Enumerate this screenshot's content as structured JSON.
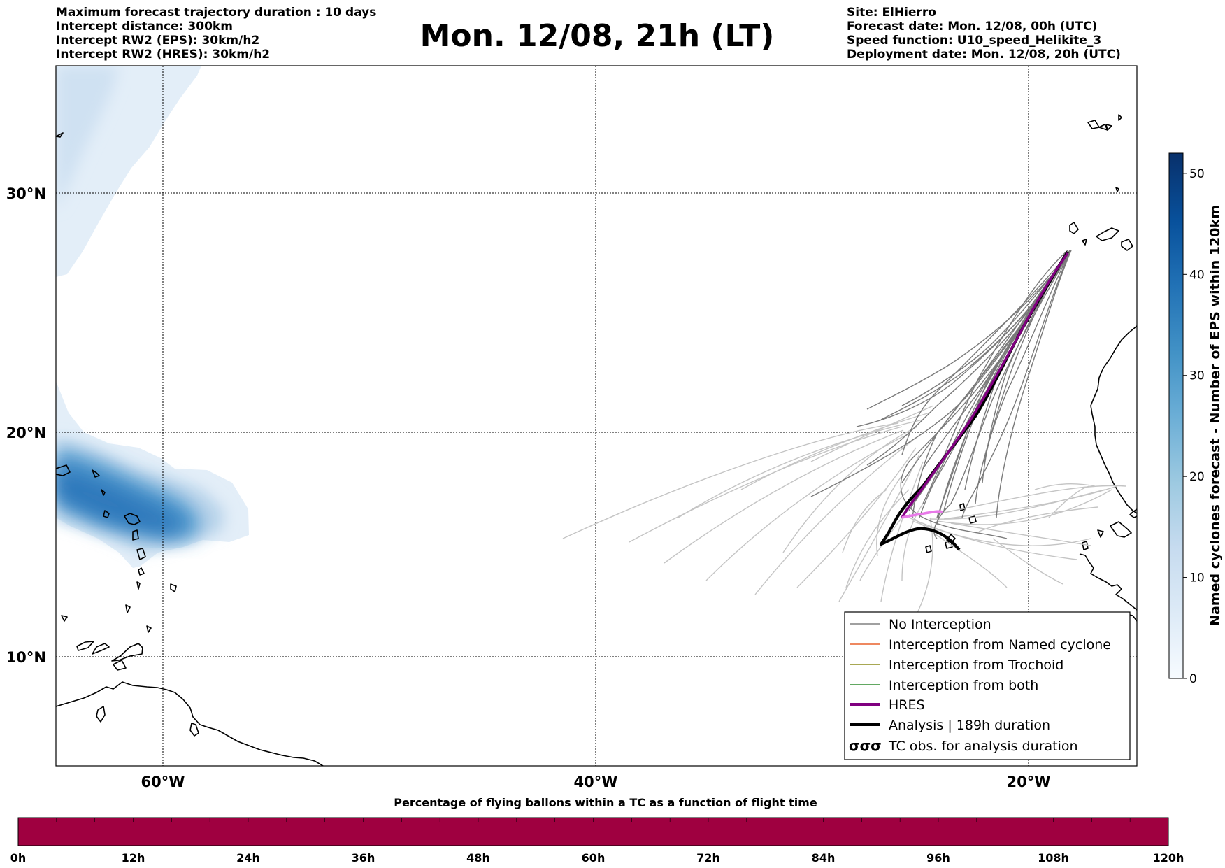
{
  "header": {
    "left_lines": [
      "Maximum forecast trajectory duration : 10 days",
      "Intercept distance: 300km",
      "Intercept RW2 (EPS):  30km/h2",
      "Intercept RW2 (HRES): 30km/h2"
    ],
    "title": "Mon. 12/08, 21h (LT)",
    "right_lines": [
      "Site: ElHierro",
      "Forecast date: Mon. 12/08, 00h (UTC)",
      "Speed function: U10_speed_Helikite_3",
      "Deployment date: Mon. 12/08, 20h (UTC)"
    ]
  },
  "map": {
    "lat_labels": [
      "30°N",
      "20°N",
      "10°N"
    ],
    "lon_labels": [
      "60°W",
      "40°W",
      "20°W"
    ],
    "extent": {
      "lon_min": -65,
      "lon_max": -15,
      "lat_min": 5.3,
      "lat_max": 35.3
    }
  },
  "colorbar": {
    "title": "Named cyclones forecast - Number of EPS within 120km",
    "ticks": [
      "0",
      "10",
      "20",
      "30",
      "40",
      "50"
    ],
    "range": [
      0,
      52
    ],
    "colors": [
      "#f7fbff",
      "#deebf7",
      "#c6dbef",
      "#9ecae1",
      "#6baed6",
      "#4292c6",
      "#2171b5",
      "#08519c",
      "#08306b"
    ]
  },
  "legend": {
    "items": [
      {
        "label": "No Interception",
        "color": "#808080",
        "style": "thin"
      },
      {
        "label": "Interception from Named cyclone",
        "color": "#e8602c",
        "style": "thin"
      },
      {
        "label": "Interception from Trochoid",
        "color": "#8b8b1a",
        "style": "thin"
      },
      {
        "label": "Interception from both",
        "color": "#2e8b2e",
        "style": "thin"
      },
      {
        "label": "HRES",
        "color": "#800080",
        "style": "thick"
      },
      {
        "label": "Analysis | 189h duration",
        "color": "#000000",
        "style": "thick"
      },
      {
        "label": "TC obs. for analysis duration",
        "color": "#000000",
        "style": "symbol",
        "symbol": "σσσ"
      }
    ]
  },
  "bottom_bar": {
    "title": "Percentage of flying ballons within a TC as a function of flight time",
    "ticks": [
      "0h",
      "12h",
      "24h",
      "36h",
      "48h",
      "60h",
      "72h",
      "84h",
      "96h",
      "108h",
      "120h"
    ],
    "fill_color": "#9f0040"
  },
  "chart_data": {
    "type": "map",
    "site": "ElHierro",
    "analysis_track": [
      [
        -17.7,
        27.7
      ],
      [
        -18.5,
        26.5
      ],
      [
        -19.8,
        24.5
      ],
      [
        -21.2,
        22.3
      ],
      [
        -22.6,
        20.2
      ],
      [
        -24.1,
        18.5
      ],
      [
        -25.6,
        17.1
      ],
      [
        -26.5,
        16.4
      ],
      [
        -26.9,
        15.6
      ],
      [
        -26.2,
        15.8
      ],
      [
        -25.3,
        15.9
      ],
      [
        -24.3,
        15.4
      ]
    ],
    "hres_track": [
      [
        -17.7,
        27.5
      ],
      [
        -18.8,
        26.0
      ],
      [
        -20.2,
        23.8
      ],
      [
        -21.7,
        21.4
      ],
      [
        -23.2,
        19.3
      ],
      [
        -24.7,
        17.6
      ],
      [
        -25.8,
        16.8
      ],
      [
        -26.5,
        16.3
      ],
      [
        -25.4,
        16.5
      ],
      [
        -24.4,
        16.7
      ]
    ],
    "cyclone_density_peak": {
      "lon": -59.5,
      "lat": 16.6,
      "value": 45
    }
  }
}
